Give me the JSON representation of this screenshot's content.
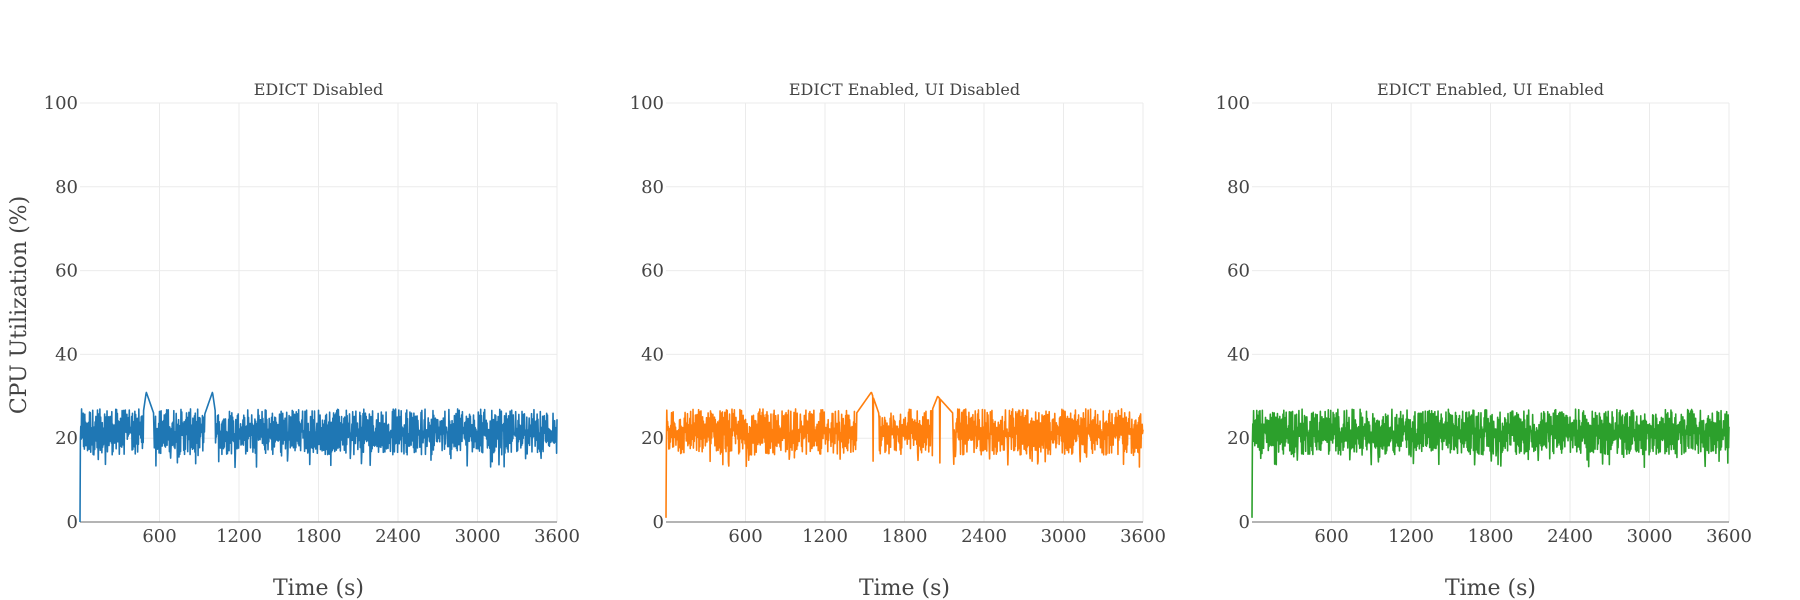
{
  "figure": {
    "ylabel": "CPU Utilization (%)",
    "xlabel": "Time (s)"
  },
  "chart_data": [
    {
      "type": "line",
      "title": "EDICT Disabled",
      "xlabel": "Time (s)",
      "ylabel": "CPU Utilization (%)",
      "xlim": [
        0,
        3600
      ],
      "ylim": [
        0,
        100
      ],
      "xticks": [
        600,
        1200,
        1800,
        2400,
        3000,
        3600
      ],
      "yticks": [
        0,
        20,
        40,
        60,
        80,
        100
      ],
      "grid": true,
      "color": "#1f77b4",
      "series": [
        {
          "x": [
            0,
            150,
            300,
            450,
            500,
            600,
            750,
            900,
            1000,
            1050,
            1200,
            1350,
            1500,
            1650,
            1800,
            1950,
            2100,
            2250,
            2400,
            2550,
            2700,
            2850,
            3000,
            3150,
            3300,
            3450,
            3600
          ],
          "y": [
            0,
            22,
            21,
            20,
            31,
            22,
            21,
            22,
            31,
            20,
            22,
            21,
            22,
            21,
            20,
            22,
            21,
            23,
            22,
            21,
            22,
            21,
            22,
            21,
            22,
            22,
            21
          ]
        }
      ]
    },
    {
      "type": "line",
      "title": "EDICT Enabled, UI Disabled",
      "xlabel": "Time (s)",
      "ylabel": "",
      "xlim": [
        0,
        3600
      ],
      "ylim": [
        0,
        100
      ],
      "xticks": [
        600,
        1200,
        1800,
        2400,
        3000,
        3600
      ],
      "yticks": [
        0,
        20,
        40,
        60,
        80,
        100
      ],
      "grid": true,
      "color": "#ff7f0e",
      "series": [
        {
          "x": [
            0,
            150,
            300,
            450,
            600,
            750,
            900,
            1050,
            1200,
            1350,
            1550,
            1650,
            1800,
            1950,
            2050,
            2250,
            2400,
            2550,
            2700,
            2850,
            3000,
            3150,
            3300,
            3450,
            3600
          ],
          "y": [
            1,
            22,
            21,
            22,
            21,
            22,
            21,
            22,
            21,
            22,
            31,
            22,
            21,
            22,
            30,
            23,
            21,
            22,
            21,
            22,
            21,
            22,
            22,
            21,
            22
          ]
        }
      ]
    },
    {
      "type": "line",
      "title": "EDICT Enabled, UI Enabled",
      "xlabel": "Time (s)",
      "ylabel": "",
      "xlim": [
        0,
        3600
      ],
      "ylim": [
        0,
        100
      ],
      "xticks": [
        600,
        1200,
        1800,
        2400,
        3000,
        3600
      ],
      "yticks": [
        0,
        20,
        40,
        60,
        80,
        100
      ],
      "grid": true,
      "color": "#2ca02c",
      "series": [
        {
          "x": [
            0,
            150,
            300,
            450,
            600,
            750,
            900,
            1050,
            1200,
            1350,
            1500,
            1650,
            1800,
            1950,
            2100,
            2250,
            2400,
            2550,
            2700,
            2850,
            3000,
            3150,
            3300,
            3450,
            3600
          ],
          "y": [
            1,
            22,
            21,
            22,
            21,
            22,
            21,
            22,
            21,
            22,
            21,
            20,
            22,
            21,
            22,
            21,
            22,
            21,
            22,
            21,
            22,
            21,
            22,
            22,
            22
          ]
        }
      ]
    }
  ]
}
